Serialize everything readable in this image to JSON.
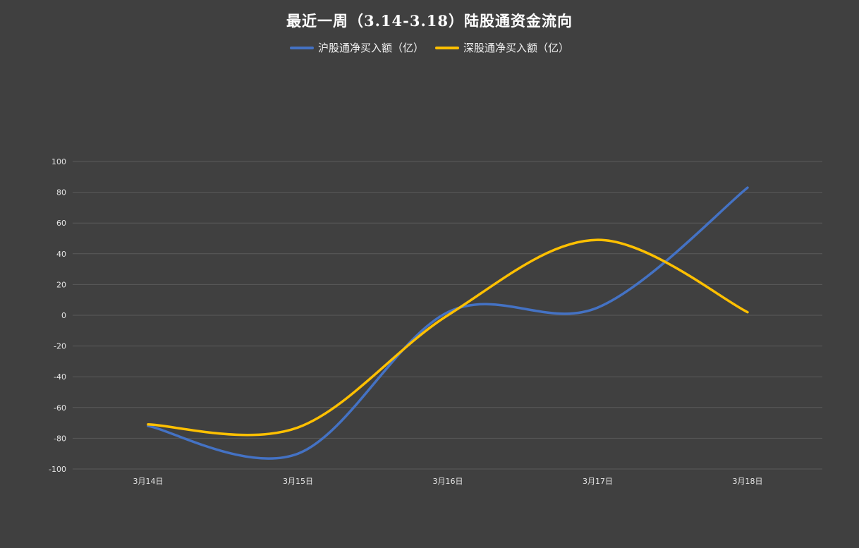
{
  "chart_data": {
    "type": "line",
    "title": "最近一周（3.14-3.18）陆股通资金流向",
    "categories": [
      "3月14日",
      "3月15日",
      "3月16日",
      "3月17日",
      "3月18日"
    ],
    "series": [
      {
        "name": "沪股通净买入额（亿）",
        "color": "#4472C4",
        "values": [
          -72,
          -90,
          2,
          5,
          83
        ]
      },
      {
        "name": "深股通净买入额（亿）",
        "color": "#FFC000",
        "values": [
          -71,
          -73,
          0,
          49,
          2
        ]
      }
    ],
    "ylim": [
      -100,
      100
    ],
    "yticks": [
      100,
      80,
      60,
      40,
      20,
      0,
      -20,
      -40,
      -60,
      -80,
      -100
    ],
    "xlabel": "",
    "ylabel": "",
    "grid": true,
    "legend": "top-center",
    "smooth": true
  }
}
